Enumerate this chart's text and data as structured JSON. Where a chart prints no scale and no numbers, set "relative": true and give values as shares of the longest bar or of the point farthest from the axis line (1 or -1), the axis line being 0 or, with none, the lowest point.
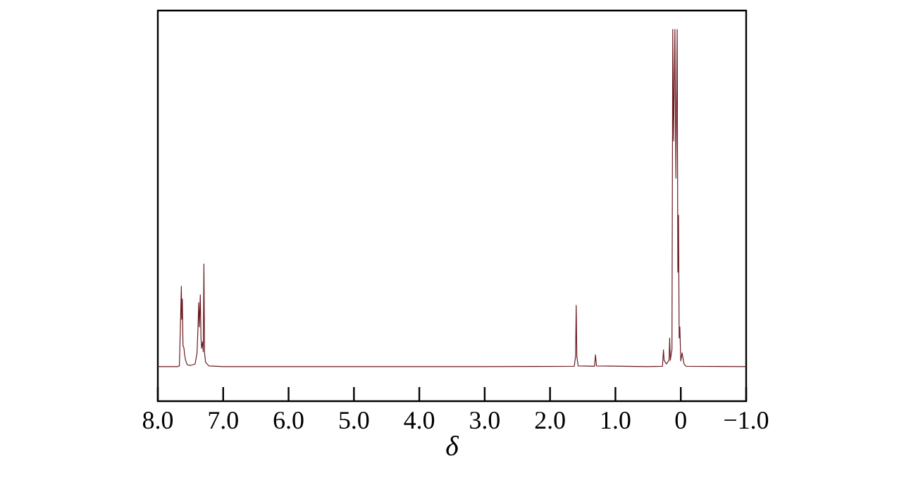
{
  "chart_data": {
    "type": "line",
    "xlabel": "δ",
    "relative": true,
    "color": "#6b1a1f",
    "xlim": [
      8,
      -1
    ],
    "xticks": [
      {
        "value": 8,
        "label": "8.0"
      },
      {
        "value": 7,
        "label": "7.0"
      },
      {
        "value": 6,
        "label": "6.0"
      },
      {
        "value": 5,
        "label": "5.0"
      },
      {
        "value": 4,
        "label": "4.0"
      },
      {
        "value": 3,
        "label": "3.0"
      },
      {
        "value": 2,
        "label": "2.0"
      },
      {
        "value": 1,
        "label": "1.0"
      },
      0,
      {
        "value": -1,
        "label": "−1.0"
      }
    ],
    "x": [
      8.0,
      7.7,
      7.67,
      7.655,
      7.64,
      7.635,
      7.625,
      7.615,
      7.6,
      7.59,
      7.575,
      7.55,
      7.5,
      7.43,
      7.4,
      7.385,
      7.375,
      7.365,
      7.35,
      7.34,
      7.33,
      7.315,
      7.305,
      7.295,
      7.285,
      7.27,
      7.22,
      7.0,
      5.0,
      3.0,
      1.63,
      1.61,
      1.6,
      1.59,
      1.57,
      1.32,
      1.305,
      1.29,
      0.5,
      0.28,
      0.265,
      0.255,
      0.22,
      0.18,
      0.17,
      0.16,
      0.135,
      0.123,
      0.11,
      0.09,
      0.075,
      0.055,
      0.045,
      0.035,
      0.025,
      0.015,
      0.0,
      -0.02,
      -0.05,
      -0.08,
      -1.0
    ],
    "values": [
      0.093,
      0.093,
      0.095,
      0.2,
      0.309,
      0.22,
      0.275,
      0.15,
      0.142,
      0.125,
      0.11,
      0.098,
      0.096,
      0.1,
      0.13,
      0.2,
      0.265,
      0.2,
      0.286,
      0.17,
      0.142,
      0.16,
      0.133,
      0.369,
      0.13,
      0.105,
      0.095,
      0.093,
      0.093,
      0.093,
      0.094,
      0.12,
      0.258,
      0.12,
      0.095,
      0.094,
      0.125,
      0.095,
      0.093,
      0.094,
      0.138,
      0.11,
      0.1,
      0.11,
      0.17,
      0.11,
      0.14,
      1,
      0.7,
      1,
      0.6,
      1,
      0.347,
      0.5,
      0.17,
      0.2,
      0.108,
      0.13,
      0.1,
      0.094,
      0.093
    ]
  }
}
